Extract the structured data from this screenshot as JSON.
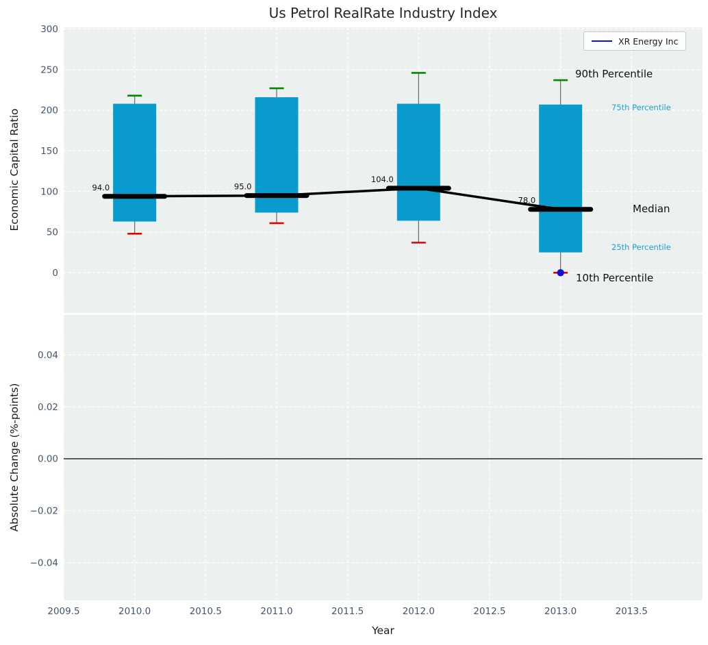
{
  "title": "Us Petrol RealRate Industry Index",
  "legend": {
    "label": "XR Energy Inc"
  },
  "annotations": {
    "p90": "90th Percentile",
    "p75": "75th Percentile",
    "median": "Median",
    "p25": "25th Percentile",
    "p10": "10th Percentile"
  },
  "colors": {
    "bar": "#099bce",
    "median": "#000000",
    "p90_cap": "#008a00",
    "p10_cap": "#e60000",
    "company": "#0f0fd6",
    "annotation_cyan": "#1ba2d8",
    "tick": "#43546d",
    "plot_bg": "#ecf0ef",
    "grid": "#ffffff",
    "whisker": "#666666",
    "zero_line": "#000000"
  },
  "chart_data": [
    {
      "type": "box",
      "subplot": "top",
      "title": "Us Petrol RealRate Industry Index",
      "ylabel": "Economic Capital Ratio",
      "x": [
        2010,
        2011,
        2012,
        2013
      ],
      "series": [
        {
          "name": "10th Percentile",
          "values": [
            48,
            61,
            37,
            0
          ]
        },
        {
          "name": "25th Percentile",
          "values": [
            63,
            74,
            64,
            25
          ]
        },
        {
          "name": "Median",
          "values": [
            94,
            95,
            104,
            78
          ]
        },
        {
          "name": "75th Percentile",
          "values": [
            208,
            216,
            208,
            207
          ]
        },
        {
          "name": "90th Percentile",
          "values": [
            218,
            227,
            246,
            237
          ]
        }
      ],
      "median_labels": [
        "94.0",
        "95.0",
        "104.0",
        "78.0"
      ],
      "company_series": {
        "name": "XR Energy Inc",
        "points": [
          {
            "x": 2013,
            "y": 0
          }
        ]
      },
      "xlim": [
        2009.5,
        2014.0
      ],
      "ylim": [
        -49.5,
        302
      ],
      "yticks": [
        0,
        50,
        100,
        150,
        200,
        250,
        300
      ],
      "yticklabels": [
        "0",
        "50",
        "100",
        "150",
        "200",
        "250",
        "300"
      ],
      "xticks": [
        2009.5,
        2010.0,
        2010.5,
        2011.0,
        2011.5,
        2012.0,
        2012.5,
        2013.0,
        2013.5
      ],
      "xticklabels": [
        "2009.5",
        "2010.0",
        "2010.5",
        "2011.0",
        "2011.5",
        "2012.0",
        "2012.5",
        "2013.0",
        "2013.5"
      ],
      "grid": true,
      "legend_position": "upper right"
    },
    {
      "type": "line",
      "subplot": "bottom",
      "ylabel": "Absolute Change (%-points)",
      "xlabel": "Year",
      "series": [],
      "zero_line": 0.0,
      "xlim": [
        2009.5,
        2014.0
      ],
      "ylim": [
        -0.0546,
        0.0554
      ],
      "yticks": [
        0.04,
        0.02,
        0.0,
        -0.02,
        -0.04
      ],
      "yticklabels": [
        "0.04",
        "0.02",
        "0.00",
        "−0.02",
        "−0.04"
      ],
      "grid": true
    }
  ]
}
